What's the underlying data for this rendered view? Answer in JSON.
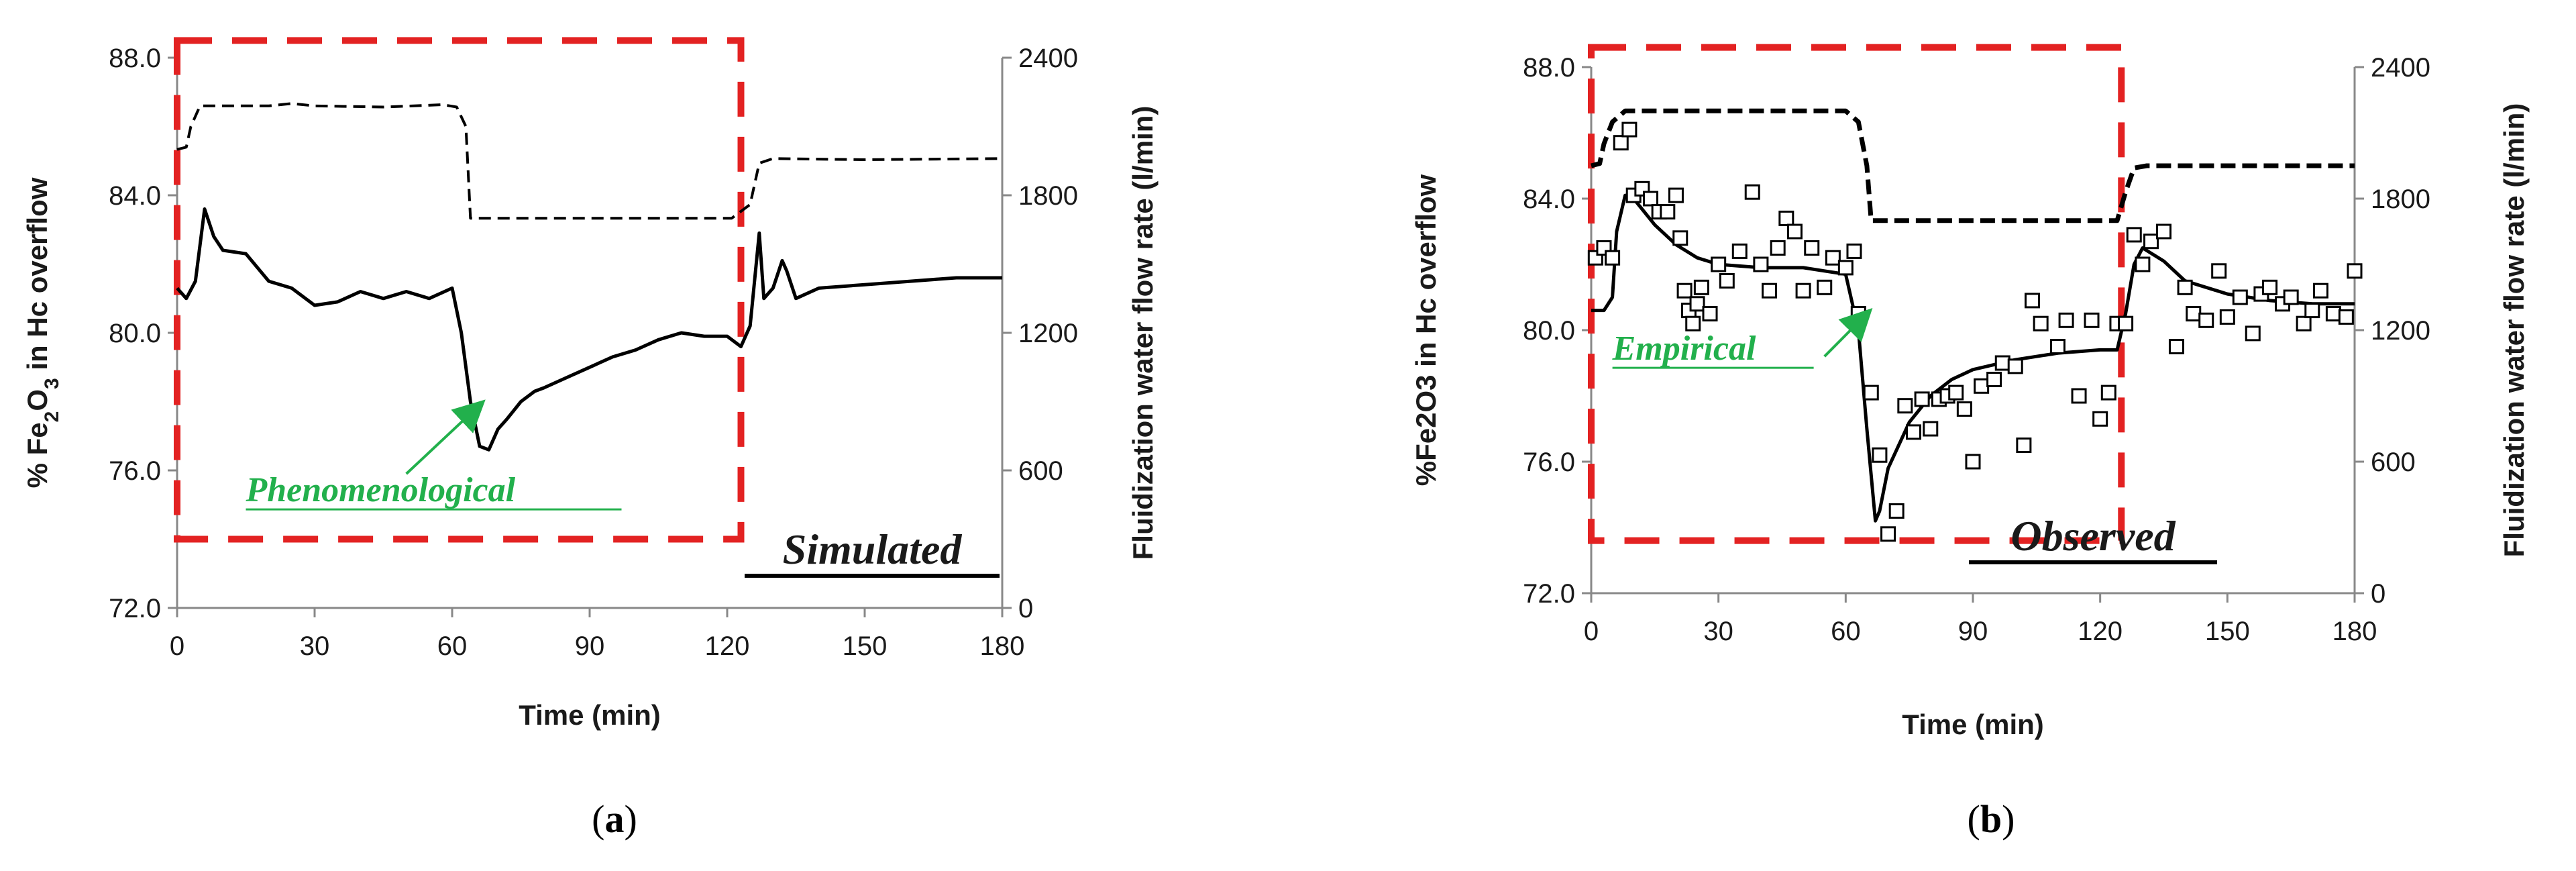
{
  "colors": {
    "box": "#e32222",
    "model_label": "#22b04c",
    "line": "#000000"
  },
  "chart_data": [
    {
      "type": "line",
      "panel": "a",
      "caption": {
        "open": "(",
        "letter": "a",
        "close": ")"
      },
      "tag": "Simulated",
      "model_label": "Phenomenological",
      "xlabel": "Time (min)",
      "ylabel_left": {
        "pre": "% Fe",
        "sub1": "2",
        "mid": "O",
        "sub2": "3",
        "post": " in Hc overflow"
      },
      "ylabel_right": "Fluidization water flow rate (l/min)",
      "xlim": [
        0,
        180
      ],
      "ylim": [
        72,
        88
      ],
      "y2lim": [
        0,
        2400
      ],
      "xticks": [
        "0",
        "30",
        "60",
        "90",
        "120",
        "150",
        "180"
      ],
      "yticks": [
        "72.0",
        "76.0",
        "80.0",
        "84.0",
        "88.0"
      ],
      "y2ticks": [
        "0",
        "600",
        "1200",
        "1800",
        "2400"
      ],
      "box_x": [
        0,
        123
      ],
      "box_y": [
        74,
        88.5
      ],
      "arrow": {
        "from": [
          50,
          75.9
        ],
        "to": [
          66,
          77.9
        ]
      },
      "series": [
        {
          "axis": "right",
          "style": "dashed",
          "x": [
            0,
            2,
            3,
            5,
            20,
            25,
            30,
            45,
            58,
            61,
            63,
            64,
            70,
            90,
            110,
            121,
            125,
            127,
            130,
            150,
            180
          ],
          "y": [
            2000,
            2010,
            2100,
            2190,
            2190,
            2200,
            2190,
            2185,
            2195,
            2185,
            2100,
            1700,
            1700,
            1700,
            1700,
            1700,
            1760,
            1940,
            1960,
            1955,
            1960
          ]
        },
        {
          "axis": "left",
          "style": "solid",
          "x": [
            0,
            2,
            4,
            6,
            8,
            10,
            15,
            20,
            25,
            30,
            35,
            40,
            45,
            50,
            55,
            60,
            62,
            64,
            66,
            68,
            70,
            72,
            75,
            78,
            80,
            85,
            90,
            95,
            100,
            105,
            110,
            115,
            120,
            123,
            125,
            127,
            128,
            130,
            132,
            133,
            135,
            140,
            150,
            160,
            170,
            180
          ],
          "y": [
            81.3,
            81.0,
            81.5,
            83.6,
            82.8,
            82.4,
            82.3,
            81.5,
            81.3,
            80.8,
            80.9,
            81.2,
            81.0,
            81.2,
            81.0,
            81.3,
            80.0,
            78.0,
            76.7,
            76.6,
            77.2,
            77.5,
            78.0,
            78.3,
            78.4,
            78.7,
            79.0,
            79.3,
            79.5,
            79.8,
            80.0,
            79.9,
            79.9,
            79.6,
            80.2,
            82.9,
            81.0,
            81.3,
            82.1,
            81.8,
            81.0,
            81.3,
            81.4,
            81.5,
            81.6,
            81.6
          ]
        }
      ]
    },
    {
      "type": "line",
      "panel": "b",
      "caption": {
        "open": "(",
        "letter": "b",
        "close": ")"
      },
      "tag": "Observed",
      "model_label": "Empirical",
      "xlabel": "Time (min)",
      "ylabel_left": "%Fe2O3 in Hc overflow",
      "ylabel_right": "Fluidization water flow rate (l/min)",
      "xlim": [
        0,
        180
      ],
      "ylim": [
        72,
        88
      ],
      "y2lim": [
        0,
        2400
      ],
      "xticks": [
        "0",
        "30",
        "60",
        "90",
        "120",
        "150",
        "180"
      ],
      "yticks": [
        "72.0",
        "76.0",
        "80.0",
        "84.0",
        "88.0"
      ],
      "y2ticks": [
        "0",
        "600",
        "1200",
        "1800",
        "2400"
      ],
      "box_x": [
        0,
        125
      ],
      "box_y": [
        73.6,
        88.6
      ],
      "arrow": {
        "from": [
          55,
          79.2
        ],
        "to": [
          65,
          80.5
        ]
      },
      "series": [
        {
          "axis": "right",
          "style": "dashed",
          "x": [
            0,
            2,
            3,
            5,
            8,
            20,
            40,
            60,
            63,
            65,
            66,
            68,
            80,
            100,
            120,
            124,
            126,
            128,
            131,
            150,
            180
          ],
          "y": [
            1950,
            1960,
            2050,
            2150,
            2200,
            2200,
            2200,
            2200,
            2150,
            1950,
            1700,
            1700,
            1700,
            1700,
            1700,
            1700,
            1830,
            1940,
            1950,
            1950,
            1950
          ]
        },
        {
          "axis": "left",
          "style": "solid",
          "x": [
            0,
            3,
            5,
            6,
            8,
            10,
            15,
            20,
            25,
            30,
            40,
            50,
            55,
            60,
            63,
            65,
            67,
            68,
            70,
            75,
            80,
            85,
            90,
            100,
            110,
            120,
            124,
            126,
            128,
            130,
            135,
            140,
            150,
            160,
            170,
            180
          ],
          "y": [
            80.6,
            80.6,
            81.0,
            83.0,
            84.1,
            84.0,
            83.2,
            82.6,
            82.2,
            82.0,
            81.9,
            81.9,
            81.8,
            81.7,
            80.0,
            77.0,
            74.2,
            74.5,
            75.8,
            77.2,
            78.0,
            78.5,
            78.8,
            79.1,
            79.3,
            79.4,
            79.4,
            80.5,
            82.0,
            82.5,
            82.1,
            81.5,
            81.1,
            80.9,
            80.8,
            80.8
          ]
        },
        {
          "axis": "left",
          "style": "markers",
          "x": [
            1,
            3,
            5,
            7,
            9,
            10,
            12,
            14,
            16,
            18,
            20,
            21,
            22,
            23,
            24,
            25,
            26,
            28,
            30,
            32,
            35,
            38,
            40,
            42,
            44,
            46,
            48,
            50,
            52,
            55,
            57,
            60,
            62,
            63,
            66,
            68,
            70,
            72,
            74,
            76,
            78,
            80,
            82,
            84,
            86,
            88,
            90,
            92,
            95,
            97,
            100,
            102,
            104,
            106,
            110,
            112,
            115,
            118,
            120,
            122,
            124,
            126,
            128,
            130,
            132,
            135,
            138,
            140,
            142,
            145,
            148,
            150,
            153,
            156,
            158,
            160,
            163,
            165,
            168,
            170,
            172,
            175,
            178,
            180
          ],
          "y": [
            82.2,
            82.5,
            82.2,
            85.7,
            86.1,
            84.1,
            84.3,
            84.0,
            83.6,
            83.6,
            84.1,
            82.8,
            81.2,
            80.6,
            80.2,
            80.8,
            81.3,
            80.5,
            82.0,
            81.5,
            82.4,
            84.2,
            82.0,
            81.2,
            82.5,
            83.4,
            83.0,
            81.2,
            82.5,
            81.3,
            82.2,
            81.9,
            82.4,
            80.5,
            78.1,
            76.2,
            73.8,
            74.5,
            77.7,
            76.9,
            77.9,
            77.0,
            77.9,
            78.0,
            78.1,
            77.6,
            76.0,
            78.3,
            78.5,
            79.0,
            78.9,
            76.5,
            80.9,
            80.2,
            79.5,
            80.3,
            78.0,
            80.3,
            77.3,
            78.1,
            80.2,
            80.2,
            82.9,
            82.0,
            82.7,
            83.0,
            79.5,
            81.3,
            80.5,
            80.3,
            81.8,
            80.4,
            81.0,
            79.9,
            81.1,
            81.3,
            80.8,
            81.0,
            80.2,
            80.6,
            81.2,
            80.5,
            80.4,
            81.8
          ]
        }
      ]
    }
  ]
}
